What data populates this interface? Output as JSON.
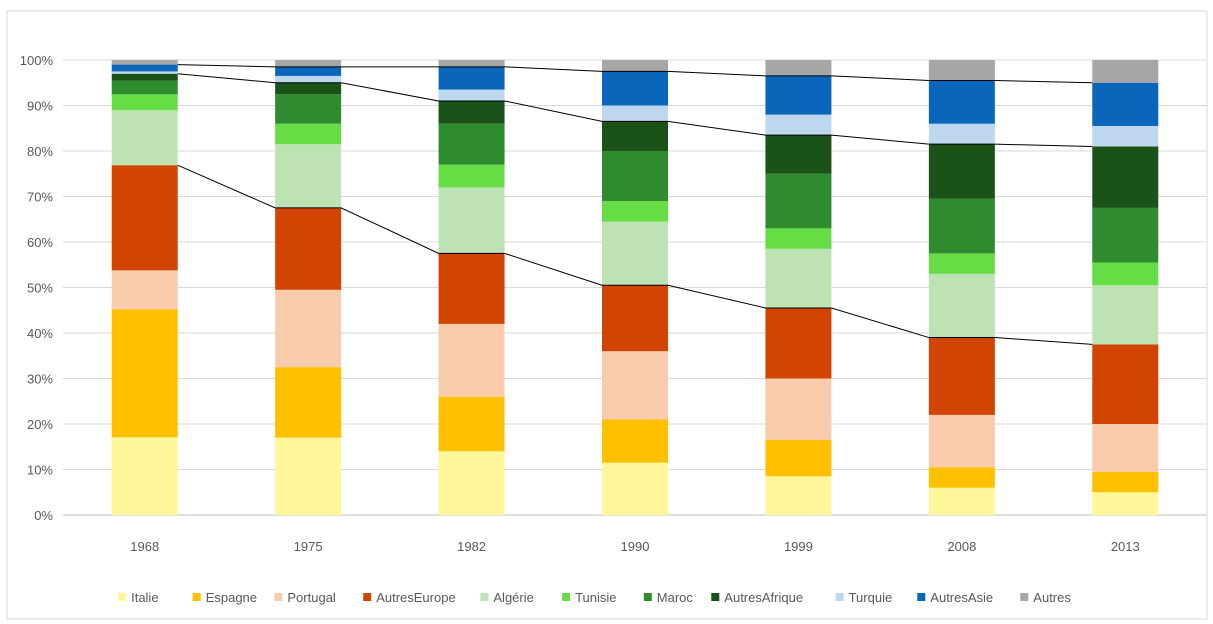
{
  "chart_data": {
    "type": "bar",
    "stacked": true,
    "percent_scale": true,
    "categories": [
      "1968",
      "1975",
      "1982",
      "1990",
      "1999",
      "2008",
      "2013"
    ],
    "ylim": [
      0,
      100
    ],
    "yticks": [
      "0%",
      "10%",
      "20%",
      "30%",
      "40%",
      "50%",
      "60%",
      "70%",
      "80%",
      "90%",
      "100%"
    ],
    "grid": true,
    "legend": "bottom",
    "series": [
      {
        "name": "Italie",
        "color": "#FFF799",
        "values": [
          17,
          17,
          14,
          11.5,
          8.5,
          6,
          5
        ]
      },
      {
        "name": "Espagne",
        "color": "#FFC000",
        "values": [
          28,
          15.5,
          12,
          9.5,
          8,
          4.5,
          4.5
        ]
      },
      {
        "name": "Portugal",
        "color": "#F8CBAD",
        "values": [
          8.5,
          17,
          16,
          15,
          13.5,
          11.5,
          10.5
        ]
      },
      {
        "name": "AutresEurope",
        "color": "#D24500",
        "values": [
          23,
          18,
          15.5,
          14.5,
          15.5,
          17,
          17.5
        ]
      },
      {
        "name": "Algérie",
        "color": "#BDE3B4",
        "values": [
          12,
          14,
          14.5,
          14,
          13,
          14,
          13
        ]
      },
      {
        "name": "Tunisie",
        "color": "#66DD44",
        "values": [
          3.5,
          4.5,
          5,
          4.5,
          4.5,
          4.5,
          5
        ]
      },
      {
        "name": "Maroc",
        "color": "#2E8B2E",
        "values": [
          3,
          6.5,
          9,
          11,
          12,
          12,
          12
        ]
      },
      {
        "name": "AutresAfrique",
        "color": "#1A5218",
        "values": [
          1.5,
          2.5,
          5,
          6.5,
          8.5,
          12,
          13.5
        ]
      },
      {
        "name": "Turquie",
        "color": "#BDD7EE",
        "values": [
          0.5,
          1.5,
          2.5,
          3.5,
          4.5,
          4.5,
          4.5
        ]
      },
      {
        "name": "AutresAsie",
        "color": "#0A66BB",
        "values": [
          1.5,
          2,
          5,
          7.5,
          8.5,
          9.5,
          9.5
        ]
      },
      {
        "name": "Autres",
        "color": "#A6A6A6",
        "values": [
          1,
          1.5,
          1.5,
          2.5,
          3.5,
          4.5,
          5
        ]
      }
    ],
    "connector_lines_after_series": [
      3,
      7,
      9
    ]
  }
}
